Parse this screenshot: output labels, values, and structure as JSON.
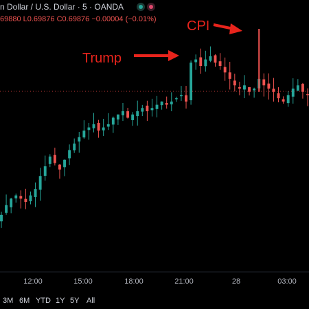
{
  "header": {
    "symbol_line": "n Dollar / U.S. Dollar · 5 · OANDA",
    "ohlc_line": "69880 L0.69876 C0.69876 −0.00004 (−0.01%)"
  },
  "annotations": {
    "trump_label": "Trump",
    "cpi_label": "CPI"
  },
  "range_buttons": [
    "3M",
    "6M",
    "YTD",
    "1Y",
    "5Y",
    "All"
  ],
  "colors": {
    "background": "#000000",
    "up": "#26a69a",
    "down": "#ef5350",
    "annotation": "#e8241c",
    "text": "#d1d4dc",
    "axis_text": "#b2b5be",
    "price_line": "#c23a36"
  },
  "chart_data": {
    "type": "candlestick",
    "x_ticks": [
      "12:00",
      "15:00",
      "18:00",
      "21:00",
      "28",
      "03:00"
    ],
    "approx_close_series": [
      0.695,
      0.6953,
      0.6955,
      0.6956,
      0.6955,
      0.6954,
      0.6956,
      0.6958,
      0.6962,
      0.6965,
      0.6968,
      0.6966,
      0.6964,
      0.6967,
      0.697,
      0.6972,
      0.6974,
      0.6976,
      0.6977,
      0.6978,
      0.6976,
      0.6977,
      0.6978,
      0.698,
      0.6981,
      0.6982,
      0.698,
      0.6981,
      0.6982,
      0.6983,
      0.6982,
      0.6983,
      0.6984,
      0.6985,
      0.6984,
      0.6985,
      0.6986,
      0.6987,
      0.6985,
      0.6997,
      0.6998,
      0.6996,
      0.6998,
      0.6999,
      0.6997,
      0.6996,
      0.6994,
      0.6992,
      0.699,
      0.6989,
      0.699,
      0.6988,
      0.6989,
      0.6992,
      0.699,
      0.6989,
      0.6988,
      0.6986,
      0.6985,
      0.6987,
      0.6989,
      0.699,
      0.6988,
      0.6987
    ]
  }
}
